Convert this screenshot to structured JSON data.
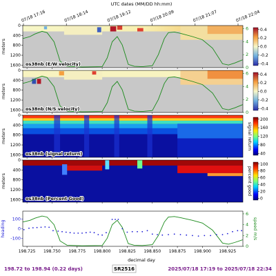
{
  "chart_data": {
    "type": "heatmap",
    "top_axis_title": "UTC dates (MM/DD hh:mm)",
    "top_ticks": [
      "07/18 17:16",
      "07/18 18:14",
      "07/18 19:12",
      "07/18 20:09",
      "07/18 21:07",
      "07/18 22:04"
    ],
    "bottom_axis_title": "decimal day",
    "x_ticks": [
      198.725,
      198.75,
      198.775,
      198.8,
      198.825,
      198.85,
      198.875,
      198.9,
      198.925
    ],
    "x_tick_labels": [
      "198.725",
      "198.750",
      "198.775",
      "198.800",
      "198.825",
      "198.850",
      "198.875",
      "198.900",
      "198.925"
    ],
    "xlim": [
      198.7208,
      198.9403
    ],
    "depth_label": "meters",
    "depth_ticks": [
      0,
      400,
      800,
      1200,
      1600
    ],
    "depth_lim": [
      0,
      1700
    ],
    "panels": [
      {
        "label": "os38nb (E/W velocity)",
        "colorbar_ticks": [
          "0.4",
          "0.2",
          "0.0",
          "-0.2",
          "-0.4"
        ],
        "speed_ticks": [
          "6",
          "4",
          "2",
          "0"
        ]
      },
      {
        "label": "os38nb (N/S velocity)",
        "colorbar_ticks": [
          "0.4",
          "0.2",
          "0.0",
          "-0.2",
          "-0.4"
        ],
        "speed_ticks": [
          "6",
          "4",
          "2",
          "0"
        ]
      },
      {
        "label": "os38nb (signal return)",
        "colorbar_ticks": [
          "200",
          "160",
          "120",
          "80",
          "40"
        ],
        "colorbar_title": "signal return"
      },
      {
        "label": "os38nb (Percent Good)",
        "colorbar_ticks": [
          "100",
          "80",
          "60",
          "40",
          "20",
          "0"
        ],
        "colorbar_title": "percent good"
      }
    ],
    "ship_speed": {
      "name": "speed",
      "ylabel": "speed m/s",
      "yticks": [
        "6",
        "4",
        "2",
        "0"
      ],
      "ylim": [
        0,
        6.5
      ],
      "x": [
        198.721,
        198.728,
        198.733,
        198.74,
        198.745,
        198.752,
        198.758,
        198.765,
        198.78,
        198.8,
        198.805,
        198.81,
        198.815,
        198.82,
        198.826,
        198.832,
        198.84,
        198.85,
        198.856,
        198.862,
        198.866,
        198.872,
        198.878,
        198.89,
        198.9,
        198.91,
        198.92,
        198.926,
        198.932,
        198.94
      ],
      "values": [
        4.5,
        4.8,
        5.2,
        5.6,
        5.4,
        4.0,
        1.0,
        0.2,
        0.1,
        0.15,
        1.5,
        4.0,
        4.8,
        3.5,
        0.5,
        0.2,
        0.15,
        0.3,
        2.0,
        4.5,
        5.4,
        5.5,
        5.3,
        4.8,
        4.3,
        3.0,
        0.6,
        0.4,
        0.7,
        1.2
      ]
    },
    "heading": {
      "name": "heading",
      "ylabel": "heading",
      "yticks": [
        "100",
        "0",
        "-100"
      ],
      "ylim": [
        -180,
        180
      ],
      "x": [
        198.722,
        198.727,
        198.731,
        198.735,
        198.739,
        198.743,
        198.747,
        198.751,
        198.756,
        198.76,
        198.764,
        198.768,
        198.772,
        198.776,
        198.78,
        198.784,
        198.788,
        198.792,
        198.796,
        198.8,
        198.804,
        198.81,
        198.813,
        198.816,
        198.82,
        198.825,
        198.83,
        198.835,
        198.84,
        198.845,
        198.85,
        198.855,
        198.86,
        198.866,
        198.872,
        198.878,
        198.884,
        198.89,
        198.896,
        198.902,
        198.908,
        198.914,
        198.92,
        198.925,
        198.93,
        198.935,
        198.939
      ],
      "values": [
        -10,
        5,
        10,
        12,
        15,
        18,
        15,
        -20,
        -25,
        -30,
        -35,
        -40,
        -45,
        -45,
        -45,
        -40,
        -35,
        -40,
        -60,
        -65,
        -40,
        95,
        95,
        95,
        0,
        -35,
        -30,
        -30,
        -30,
        -20,
        -55,
        -60,
        -65,
        -60,
        -55,
        -60,
        -65,
        -70,
        -75,
        -70,
        -70,
        -60,
        -60,
        -50,
        -30,
        -20,
        -20
      ]
    },
    "footer_left": "198.72 to 198.94 (0.22 days)",
    "footer_center": "SR2516",
    "footer_right": "2025/07/18 17:19 to 2025/07/18 22:34"
  }
}
